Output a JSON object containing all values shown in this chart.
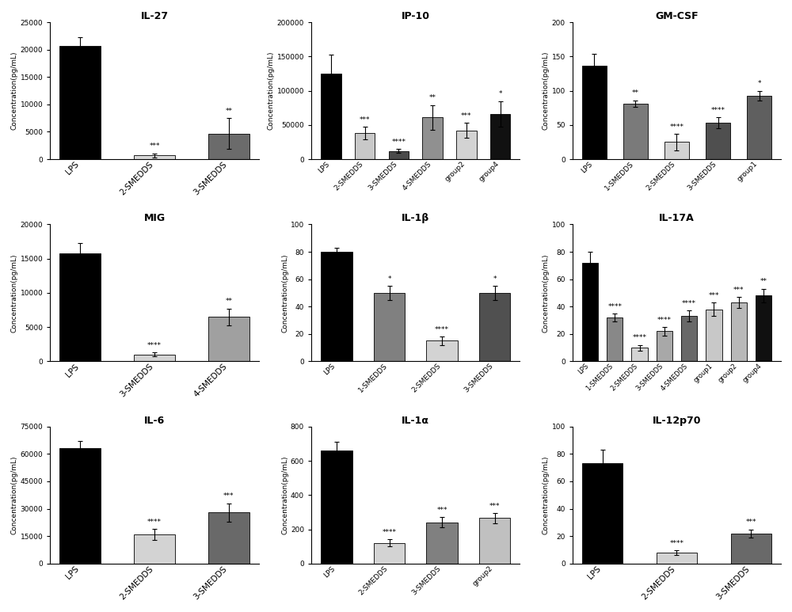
{
  "subplots": [
    {
      "title": "IL-27",
      "ylabel": "Concentration(pg/mL)",
      "categories": [
        "LPS",
        "2-SMEDDS",
        "3-SMEDDS"
      ],
      "values": [
        20700,
        700,
        4700
      ],
      "errors": [
        1500,
        350,
        2800
      ],
      "colors": [
        "#000000",
        "#d8d8d8",
        "#6b6b6b"
      ],
      "sig": [
        "",
        "***",
        "**"
      ],
      "ylim": [
        0,
        25000
      ],
      "yticks": [
        0,
        5000,
        10000,
        15000,
        20000,
        25000
      ]
    },
    {
      "title": "IP-10",
      "ylabel": "Concentration(pg/mL)",
      "categories": [
        "LPS",
        "2-SMEDDS",
        "3-SMEDDS",
        "4-SMEDDS",
        "group2",
        "group4"
      ],
      "values": [
        125000,
        38000,
        12000,
        61000,
        42000,
        66000
      ],
      "errors": [
        28000,
        9000,
        3000,
        18000,
        11000,
        19000
      ],
      "colors": [
        "#000000",
        "#c8c8c8",
        "#4a4a4a",
        "#909090",
        "#d3d3d3",
        "#111111"
      ],
      "sig": [
        "",
        "***",
        "****",
        "**",
        "***",
        "*"
      ],
      "ylim": [
        0,
        200000
      ],
      "yticks": [
        0,
        50000,
        100000,
        150000,
        200000
      ]
    },
    {
      "title": "GM-CSF",
      "ylabel": "Concentration(pg/mL)",
      "categories": [
        "LPS",
        "1-SMEDDS",
        "2-SMEDDS",
        "3-SMEDDS",
        "group1"
      ],
      "values": [
        136,
        81,
        25,
        53,
        93
      ],
      "errors": [
        18,
        5,
        12,
        8,
        7
      ],
      "colors": [
        "#000000",
        "#7a7a7a",
        "#d3d3d3",
        "#4f4f4f",
        "#5f5f5f"
      ],
      "sig": [
        "",
        "**",
        "****",
        "****",
        "*"
      ],
      "ylim": [
        0,
        200
      ],
      "yticks": [
        0,
        50,
        100,
        150,
        200
      ]
    },
    {
      "title": "MIG",
      "ylabel": "Concentration(pg/mL)",
      "categories": [
        "LPS",
        "3-SMEDDS",
        "4-SMEDDS"
      ],
      "values": [
        15800,
        1000,
        6500
      ],
      "errors": [
        1500,
        300,
        1200
      ],
      "colors": [
        "#000000",
        "#d3d3d3",
        "#a0a0a0"
      ],
      "sig": [
        "",
        "****",
        "**"
      ],
      "ylim": [
        0,
        20000
      ],
      "yticks": [
        0,
        5000,
        10000,
        15000,
        20000
      ]
    },
    {
      "title": "IL-1β",
      "ylabel": "Concentration(pg/mL)",
      "categories": [
        "LPS",
        "1-SMEDDS",
        "2-SMEDDS",
        "3-SMEDDS"
      ],
      "values": [
        80,
        50,
        15,
        50
      ],
      "errors": [
        3,
        5,
        3,
        5
      ],
      "colors": [
        "#000000",
        "#808080",
        "#d3d3d3",
        "#505050"
      ],
      "sig": [
        "",
        "*",
        "****",
        "*"
      ],
      "ylim": [
        0,
        100
      ],
      "yticks": [
        0,
        20,
        40,
        60,
        80,
        100
      ]
    },
    {
      "title": "IL-17A",
      "ylabel": "Concentration(pg/mL)",
      "categories": [
        "LPS",
        "1-SMEDDS",
        "2-SMEDDS",
        "3-SMEDDS",
        "4-SMEDDS",
        "group1",
        "group2",
        "group4"
      ],
      "values": [
        72,
        32,
        10,
        22,
        33,
        38,
        43,
        48
      ],
      "errors": [
        8,
        3,
        2,
        3,
        4,
        5,
        4,
        5
      ],
      "colors": [
        "#000000",
        "#888888",
        "#d3d3d3",
        "#a8a8a8",
        "#686868",
        "#c8c8c8",
        "#b8b8b8",
        "#101010"
      ],
      "sig": [
        "",
        "****",
        "****",
        "****",
        "****",
        "***",
        "***",
        "**"
      ],
      "ylim": [
        0,
        100
      ],
      "yticks": [
        0,
        20,
        40,
        60,
        80,
        100
      ]
    },
    {
      "title": "IL-6",
      "ylabel": "Concentration(pg/mL)",
      "categories": [
        "LPS",
        "2-SMEDDS",
        "3-SMEDDS"
      ],
      "values": [
        63000,
        16000,
        28000
      ],
      "errors": [
        4000,
        3000,
        5000
      ],
      "colors": [
        "#000000",
        "#d3d3d3",
        "#696969"
      ],
      "sig": [
        "",
        "****",
        "***"
      ],
      "ylim": [
        0,
        75000
      ],
      "yticks": [
        0,
        15000,
        30000,
        45000,
        60000,
        75000
      ]
    },
    {
      "title": "IL-1α",
      "ylabel": "Concentration(pg/mL)",
      "categories": [
        "LPS",
        "2-SMEDDS",
        "3-SMEDDS",
        "group2"
      ],
      "values": [
        660,
        120,
        240,
        265
      ],
      "errors": [
        50,
        20,
        30,
        30
      ],
      "colors": [
        "#000000",
        "#d3d3d3",
        "#808080",
        "#c0c0c0"
      ],
      "sig": [
        "",
        "****",
        "***",
        "***"
      ],
      "ylim": [
        0,
        800
      ],
      "yticks": [
        0,
        200,
        400,
        600,
        800
      ]
    },
    {
      "title": "IL-12p70",
      "ylabel": "Concentration(pg/mL)",
      "categories": [
        "LPS",
        "2-SMEDDS",
        "3-SMEDDS"
      ],
      "values": [
        73,
        8,
        22
      ],
      "errors": [
        10,
        1.5,
        3
      ],
      "colors": [
        "#000000",
        "#d3d3d3",
        "#696969"
      ],
      "sig": [
        "",
        "****",
        "***"
      ],
      "ylim": [
        0,
        100
      ],
      "yticks": [
        0,
        20,
        40,
        60,
        80,
        100
      ]
    }
  ],
  "fig_width": 10.0,
  "fig_height": 7.73,
  "dpi": 100
}
